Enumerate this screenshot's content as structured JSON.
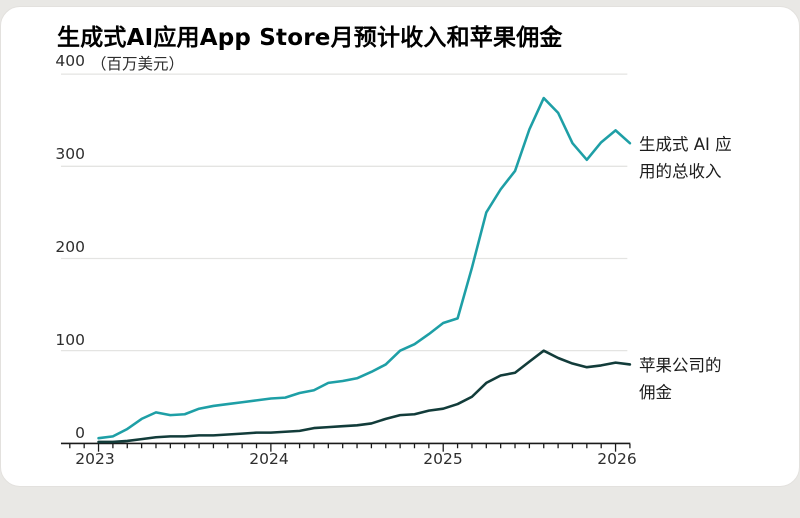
{
  "page": {
    "background_color": "#e9e8e5",
    "card_color": "#ffffff"
  },
  "chart": {
    "title": "生成式AI应用App Store月预计收入和苹果佣金",
    "y_axis": {
      "unit": "（百万美元）",
      "ticks": [
        "400",
        "300",
        "200",
        "100",
        "0"
      ]
    },
    "x_axis": {
      "ticks": [
        "2023",
        "2024",
        "2025",
        "2026"
      ]
    },
    "annotations": {
      "revenue": [
        "生成式 AI 应",
        "用的总收入"
      ],
      "commission": [
        "苹果公司的",
        "佣金"
      ]
    }
  },
  "colors": {
    "revenue_line": "#1e9fa6",
    "commission_line": "#123c3a",
    "gridline": "#e4e4e2",
    "axis": "#1a1a1a"
  },
  "chart_data": {
    "type": "line",
    "title": "生成式AI应用App Store月预计收入和苹果佣金",
    "unit": "百万美元",
    "x_frequency": "monthly",
    "x_start": "2023-01",
    "x_end": "2026-02",
    "x_tick_labels": [
      2023,
      2024,
      2025,
      2026
    ],
    "ylim": [
      0,
      400
    ],
    "y_ticks": [
      0,
      100,
      200,
      300,
      400
    ],
    "grid": "horizontal",
    "legend_position": "right-annotations",
    "series": [
      {
        "name": "生成式 AI 应用的总收入",
        "color": "#1e9fa6",
        "values": [
          5,
          7,
          15,
          26,
          33,
          30,
          31,
          37,
          40,
          42,
          44,
          46,
          48,
          49,
          54,
          57,
          65,
          67,
          70,
          77,
          85,
          100,
          107,
          118,
          130,
          135,
          190,
          250,
          275,
          295,
          340,
          374,
          358,
          325,
          307,
          326,
          339,
          325
        ]
      },
      {
        "name": "苹果公司的佣金",
        "color": "#123c3a",
        "values": [
          1,
          1,
          2,
          4,
          6,
          7,
          7,
          8,
          8,
          9,
          10,
          11,
          11,
          12,
          13,
          16,
          17,
          18,
          19,
          21,
          26,
          30,
          31,
          35,
          37,
          42,
          50,
          65,
          73,
          76,
          88,
          100,
          92,
          86,
          82,
          84,
          87,
          85
        ]
      }
    ]
  }
}
